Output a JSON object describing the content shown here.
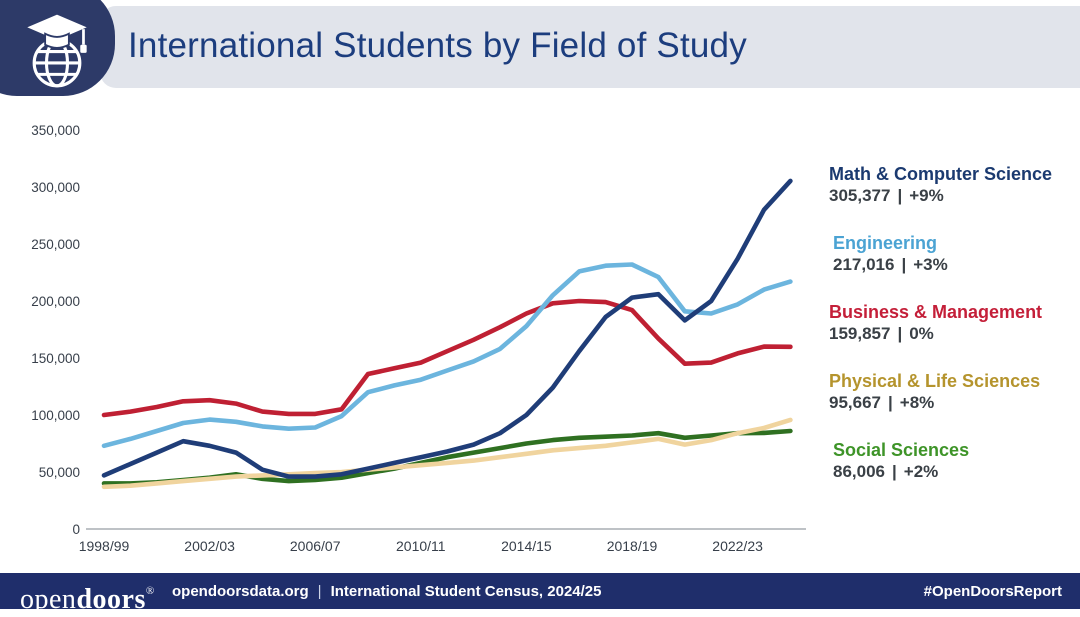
{
  "header": {
    "title": "International Students by Field of Study"
  },
  "chart_data": {
    "type": "line",
    "title": "International Students by Field of Study",
    "x_tick_labels": [
      "1998/99",
      "2002/03",
      "2006/07",
      "2010/11",
      "2014/15",
      "2018/19",
      "2022/23"
    ],
    "x_tick_positions": [
      0,
      4,
      8,
      12,
      16,
      20,
      24
    ],
    "x_point_count": 27,
    "x_range_note": "annual points from 1998/99 through 2024/25",
    "ylim": [
      0,
      350000
    ],
    "grid": false,
    "legend_position": "right",
    "y_ticks": [
      {
        "label": "0",
        "value": 0
      },
      {
        "label": "50,000",
        "value": 50000
      },
      {
        "label": "100,000",
        "value": 100000
      },
      {
        "label": "150,000",
        "value": 150000
      },
      {
        "label": "200,000",
        "value": 200000
      },
      {
        "label": "250,000",
        "value": 250000
      },
      {
        "label": "300,000",
        "value": 300000
      },
      {
        "label": "350,000",
        "value": 350000
      }
    ],
    "series": [
      {
        "name": "Math & Computer Science",
        "color": "#1f3d78",
        "values": [
          47000,
          57000,
          67000,
          77000,
          73000,
          67000,
          52000,
          46000,
          46000,
          48000,
          53000,
          58000,
          63000,
          68000,
          74000,
          84000,
          100000,
          124000,
          156000,
          186000,
          203000,
          206000,
          183000,
          200000,
          237000,
          280000,
          305377
        ]
      },
      {
        "name": "Engineering",
        "color": "#6cb5de",
        "values": [
          73000,
          79000,
          86000,
          93000,
          96000,
          94000,
          90000,
          88000,
          89000,
          99000,
          120000,
          126000,
          131000,
          139000,
          147000,
          158000,
          178000,
          205000,
          226000,
          231000,
          232000,
          221000,
          191000,
          189000,
          197000,
          210000,
          217016
        ]
      },
      {
        "name": "Business & Management",
        "color": "#bf2033",
        "values": [
          100000,
          103000,
          107000,
          112000,
          113000,
          110000,
          103000,
          101000,
          101000,
          105000,
          136000,
          141000,
          146000,
          156000,
          166000,
          177000,
          189000,
          198000,
          200000,
          199000,
          192000,
          167000,
          145000,
          146000,
          154000,
          160000,
          159857
        ]
      },
      {
        "name": "Physical & Life Sciences",
        "color": "#f0d49e",
        "values": [
          37000,
          38000,
          40000,
          42000,
          44000,
          46000,
          47000,
          48000,
          49000,
          50000,
          52000,
          54000,
          56000,
          58000,
          60000,
          63000,
          66000,
          69000,
          71000,
          73000,
          76000,
          79000,
          74000,
          78000,
          84000,
          88600,
          95667
        ]
      },
      {
        "name": "Social Sciences",
        "color": "#2f7021",
        "values": [
          40000,
          40000,
          41000,
          43000,
          45000,
          48000,
          44000,
          42000,
          43000,
          45000,
          49000,
          53000,
          58000,
          63000,
          67000,
          71000,
          75000,
          78000,
          80000,
          81000,
          82000,
          84000,
          80000,
          82000,
          84000,
          84300,
          86006
        ]
      }
    ]
  },
  "legend": {
    "items": [
      {
        "label": "Math & Computer Science",
        "value": "305,377",
        "separator": "|",
        "change": "+9%",
        "label_color": "#1b3a70"
      },
      {
        "label": "Engineering",
        "value": "217,016",
        "separator": "|",
        "change": "+3%",
        "label_color": "#4ba3d3"
      },
      {
        "label": "Business & Management",
        "value": "159,857",
        "separator": "|",
        "change": "0%",
        "label_color": "#c41f39"
      },
      {
        "label": "Physical & Life Sciences",
        "value": "95,667",
        "separator": "|",
        "change": "+8%",
        "label_color": "#b5942d"
      },
      {
        "label": "Social Sciences",
        "value": "86,006",
        "separator": "|",
        "change": "+2%",
        "label_color": "#3e9428"
      }
    ]
  },
  "footer": {
    "logo_open": "open",
    "logo_doors": "doors",
    "logo_mark": "®",
    "site": "opendoorsdata.org",
    "separator": "|",
    "census": "International Student Census, 2024/25",
    "hashtag": "#OpenDoorsReport"
  }
}
